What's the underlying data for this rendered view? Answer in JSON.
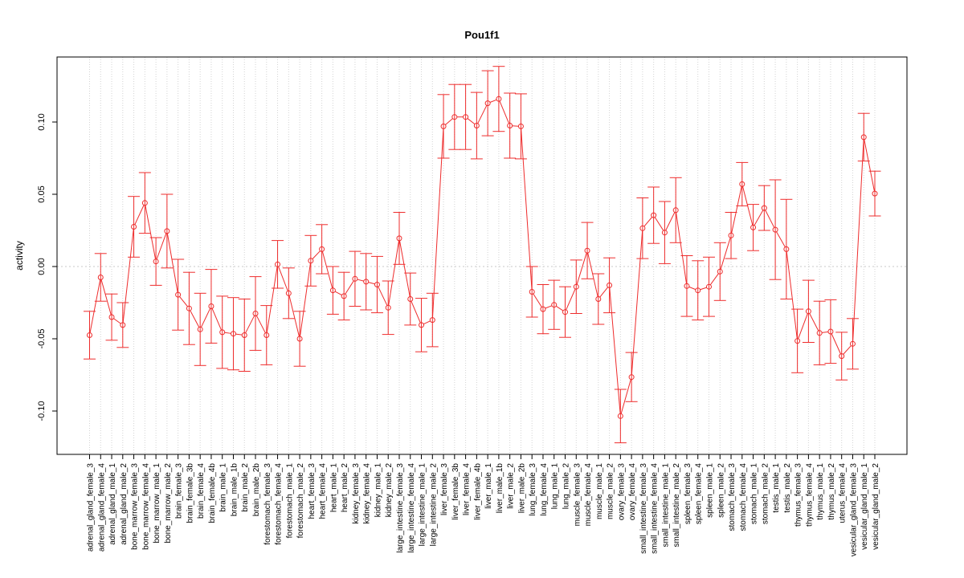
{
  "chart_data": {
    "type": "line",
    "title": "Pou1f1",
    "xlabel": "",
    "ylabel": "activity",
    "ylim": [
      -0.13,
      0.145
    ],
    "yticks": [
      -0.1,
      -0.05,
      0.0,
      0.05,
      0.1
    ],
    "ytick_labels": [
      "-0.10",
      "-0.05",
      "0.00",
      "0.05",
      "0.10"
    ],
    "reference_line": 0,
    "color": "#ee2c2c",
    "categories": [
      "adrenal_gland_female_3",
      "adrenal_gland_female_4",
      "adrenal_gland_male_1",
      "adrenal_gland_male_2",
      "bone_marrow_female_3",
      "bone_marrow_female_4",
      "bone_marrow_male_1",
      "bone_marrow_male_2",
      "brain_female_3",
      "brain_female_3b",
      "brain_female_4",
      "brain_female_4b",
      "brain_male_1",
      "brain_male_1b",
      "brain_male_2",
      "brain_male_2b",
      "forestomach_female_3",
      "forestomach_female_4",
      "forestomach_male_1",
      "forestomach_male_2",
      "heart_female_3",
      "heart_female_4",
      "heart_male_1",
      "heart_male_2",
      "kidney_female_3",
      "kidney_female_4",
      "kidney_male_1",
      "kidney_male_2",
      "large_intestine_female_3",
      "large_intestine_female_4",
      "large_intestine_male_1",
      "large_intestine_male_2",
      "liver_female_3",
      "liver_female_3b",
      "liver_female_4",
      "liver_female_4b",
      "liver_male_1",
      "liver_male_1b",
      "liver_male_2",
      "liver_male_2b",
      "lung_female_3",
      "lung_female_4",
      "lung_male_1",
      "lung_male_2",
      "muscle_female_3",
      "muscle_female_4",
      "muscle_male_1",
      "muscle_male_2",
      "ovary_female_3",
      "ovary_female_4",
      "small_intestine_female_3",
      "small_intestine_female_4",
      "small_intestine_male_1",
      "small_intestine_male_2",
      "spleen_female_3",
      "spleen_female_4",
      "spleen_male_1",
      "spleen_male_2",
      "stomach_female_3",
      "stomach_female_4",
      "stomach_male_1",
      "stomach_male_2",
      "testis_male_1",
      "testis_male_2",
      "thymus_female_3",
      "thymus_female_4",
      "thymus_male_1",
      "thymus_male_2",
      "uterus_female_4",
      "vesicular_gland_female_3",
      "vesicular_gland_male_1",
      "vesicular_gland_male_2"
    ],
    "values": [
      -0.0475,
      -0.0075,
      -0.035,
      -0.0405,
      0.0275,
      0.044,
      0.0035,
      0.0245,
      -0.0195,
      -0.029,
      -0.0435,
      -0.0275,
      -0.0455,
      -0.0465,
      -0.0475,
      -0.0325,
      -0.0475,
      0.0015,
      -0.0185,
      -0.05,
      0.004,
      0.012,
      -0.0165,
      -0.0205,
      -0.0085,
      -0.0105,
      -0.0125,
      -0.0285,
      0.0195,
      -0.0225,
      -0.0405,
      -0.037,
      0.097,
      0.1035,
      0.1035,
      0.0975,
      0.113,
      0.116,
      0.0975,
      0.097,
      -0.0175,
      -0.0295,
      -0.0265,
      -0.0315,
      -0.014,
      0.011,
      -0.0225,
      -0.013,
      -0.1035,
      -0.0765,
      0.0265,
      0.0355,
      0.0235,
      0.039,
      -0.0135,
      -0.0165,
      -0.014,
      -0.0035,
      0.0215,
      0.057,
      0.027,
      0.0405,
      0.0255,
      0.012,
      -0.0515,
      -0.031,
      -0.046,
      -0.045,
      -0.062,
      -0.0535,
      0.0895,
      0.0505
    ],
    "errors": [
      0.0165,
      0.0165,
      0.016,
      0.0155,
      0.021,
      0.021,
      0.0165,
      0.0255,
      0.0245,
      0.025,
      0.025,
      0.0255,
      0.025,
      0.025,
      0.025,
      0.0255,
      0.0205,
      0.0165,
      0.0175,
      0.019,
      0.0175,
      0.017,
      0.0165,
      0.0165,
      0.019,
      0.0195,
      0.0195,
      0.0185,
      0.018,
      0.018,
      0.0185,
      0.0185,
      0.022,
      0.0225,
      0.0225,
      0.023,
      0.0225,
      0.0225,
      0.0225,
      0.0225,
      0.0175,
      0.017,
      0.017,
      0.0175,
      0.0185,
      0.0195,
      0.0175,
      0.019,
      0.0185,
      0.017,
      0.021,
      0.0195,
      0.0215,
      0.0225,
      0.021,
      0.0205,
      0.0205,
      0.02,
      0.016,
      0.015,
      0.016,
      0.0155,
      0.0345,
      0.0345,
      0.022,
      0.0215,
      0.022,
      0.022,
      0.0165,
      0.0175,
      0.0165,
      0.0155
    ]
  }
}
